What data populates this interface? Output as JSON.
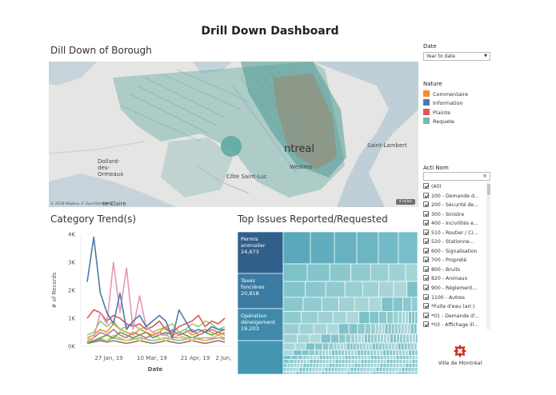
{
  "header": {
    "title": "Drill Down Dashboard"
  },
  "map": {
    "title": "Dill Down of Borough",
    "labels": {
      "dollard": "Dollard-des-Ormeaux",
      "claire": "te-Claire",
      "cote": "Côte Saint-Luc",
      "westmount": "Westmo",
      "lambert": "Saint-Lambert",
      "city": "ntreal"
    },
    "attribution": "© 2018 Mapbox © OpenStreetMap",
    "scale": "4 miles"
  },
  "date_filter": {
    "label": "Date",
    "value": "Year to date"
  },
  "legend": {
    "title": "Nature",
    "items": [
      {
        "label": "Commentaire",
        "color": "#f28e2b"
      },
      {
        "label": "Information",
        "color": "#4e79a7"
      },
      {
        "label": "Plainte",
        "color": "#e15759"
      },
      {
        "label": "Requete",
        "color": "#76b7b2"
      }
    ]
  },
  "acti_filter": {
    "label": "Acti Nom",
    "clear_symbol": "×",
    "items": [
      "(All)",
      "100 - Demande d...",
      "200 - Sécurité de...",
      "300 - Sinistre",
      "400 - Incivilités e...",
      "510 - Routier / Ci...",
      "520 - Stationne...",
      "600 - Signalisation",
      "700 - Propreté",
      "800 - Bruits",
      "820 - Animaux",
      "900 - Réglement...",
      "1100 - Autres",
      "*Fuite d'eau (arr.)",
      "*01 - Demande d'...",
      "*03 - Affichage ill...",
      "*08 - Porter assi..."
    ]
  },
  "category_trend": {
    "title": "Category Trend(s)",
    "ylabel": "# of Records",
    "xlabel": "Date",
    "yticks": [
      "4K",
      "3K",
      "2K",
      "1K",
      "0K"
    ],
    "xticks": [
      "27 Jan, 19",
      "10 Mar, 19",
      "21 Apr, 19",
      "2 Jun, 19"
    ]
  },
  "top_issues": {
    "title": "Top Issues Reported/Requested",
    "items": [
      {
        "name": "Permis animalier",
        "value": "24,673"
      },
      {
        "name": "Taxes foncières",
        "value": "20,818"
      },
      {
        "name": "Opération déneigement",
        "value": "19,203"
      }
    ]
  },
  "logo": {
    "text": "Ville de Montréal",
    "color": "#d52b1e"
  },
  "chart_data": [
    {
      "type": "line",
      "title": "Category Trend(s)",
      "xlabel": "Date",
      "ylabel": "# of Records",
      "ylim": [
        0,
        4000
      ],
      "x_ticks": [
        "27 Jan, 19",
        "10 Mar, 19",
        "21 Apr, 19",
        "2 Jun, 19"
      ],
      "grid": false,
      "series": [
        {
          "color": "#4e79a7",
          "values": [
            2300,
            3900,
            1900,
            1200,
            800,
            1900,
            600,
            900,
            1100,
            700,
            900,
            1100,
            900,
            300,
            1300,
            900,
            500,
            600,
            500,
            700,
            600,
            600
          ]
        },
        {
          "color": "#e497b7",
          "values": [
            200,
            300,
            1200,
            800,
            3000,
            1200,
            2800,
            600,
            1800,
            700,
            500,
            400,
            400,
            300,
            300,
            300,
            300,
            300,
            300,
            300,
            300,
            300
          ]
        },
        {
          "color": "#e15759",
          "values": [
            1000,
            1300,
            1200,
            900,
            1100,
            1000,
            800,
            700,
            800,
            600,
            700,
            900,
            600,
            500,
            700,
            800,
            900,
            1100,
            700,
            900,
            800,
            1000
          ]
        },
        {
          "color": "#8cd17d",
          "values": [
            400,
            500,
            900,
            700,
            900,
            600,
            700,
            800,
            600,
            700,
            500,
            600,
            700,
            800,
            500,
            600,
            800,
            700,
            900,
            800,
            600,
            700
          ]
        },
        {
          "color": "#f28e2b",
          "values": [
            300,
            400,
            600,
            500,
            800,
            600,
            500,
            400,
            600,
            500,
            400,
            500,
            700,
            400,
            500,
            600,
            400,
            500,
            600,
            500,
            400,
            500
          ]
        },
        {
          "color": "#b07aa1",
          "values": [
            200,
            300,
            500,
            400,
            600,
            400,
            300,
            500,
            400,
            300,
            400,
            500,
            400,
            600,
            400,
            500,
            600,
            400,
            500,
            600,
            500,
            400
          ]
        },
        {
          "color": "#59a14f",
          "values": [
            100,
            200,
            300,
            400,
            300,
            500,
            400,
            300,
            400,
            500,
            300,
            400,
            500,
            400,
            500,
            400,
            300,
            400,
            500,
            400,
            500,
            600
          ]
        },
        {
          "color": "#edc948",
          "values": [
            300,
            200,
            300,
            200,
            400,
            300,
            200,
            300,
            200,
            300,
            400,
            300,
            200,
            300,
            400,
            300,
            200,
            300,
            200,
            300,
            400,
            300
          ]
        },
        {
          "color": "#76b7b2",
          "values": [
            150,
            200,
            250,
            200,
            300,
            250,
            200,
            250,
            300,
            250,
            200,
            250,
            300,
            250,
            200,
            250,
            300,
            250,
            200,
            250,
            300,
            250
          ]
        },
        {
          "color": "#9c755f",
          "values": [
            100,
            150,
            200,
            150,
            200,
            150,
            100,
            150,
            200,
            150,
            100,
            150,
            200,
            150,
            100,
            150,
            200,
            150,
            100,
            150,
            200,
            150
          ]
        }
      ]
    },
    {
      "type": "treemap",
      "title": "Top Issues Reported/Requested",
      "categories": [
        "Permis animalier",
        "Taxes foncières",
        "Opération déneigement"
      ],
      "values": [
        24673,
        20818,
        19203
      ]
    }
  ]
}
